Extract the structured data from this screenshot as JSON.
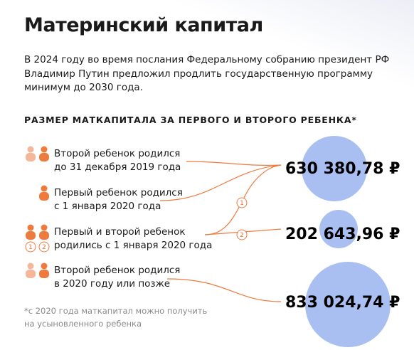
{
  "header": {
    "title": "Материнский капитал",
    "intro": "В 2024 году во время послания Федеральному собранию президент РФ Владимир Путин предложил продлить государственную программу минимум до 2030 года."
  },
  "section_title": "РАЗМЕР МАТКАПИТАЛА ЗА ПЕРВОГО И ВТОРОГО РЕБЕНКА*",
  "rows": [
    {
      "line1": "Второй ребенок родился",
      "line2": "до 31 декабря 2019 года"
    },
    {
      "line1": "Первый ребенок родился",
      "line2": "с 1 января 2020 года"
    },
    {
      "line1": "Первый и второй ребенок",
      "line2": "родились с 1 января 2020 года"
    },
    {
      "line1": "Второй ребенок родился",
      "line2": "в 2020 году или позже"
    }
  ],
  "markers": [
    "1",
    "2"
  ],
  "amounts": [
    "630 380,78 ₽",
    "202 643,96 ₽",
    "833 024,74 ₽"
  ],
  "footnote": {
    "line1": "*с 2020 года маткапитал можно получить",
    "line2": "на усыновленного ребенка"
  }
}
